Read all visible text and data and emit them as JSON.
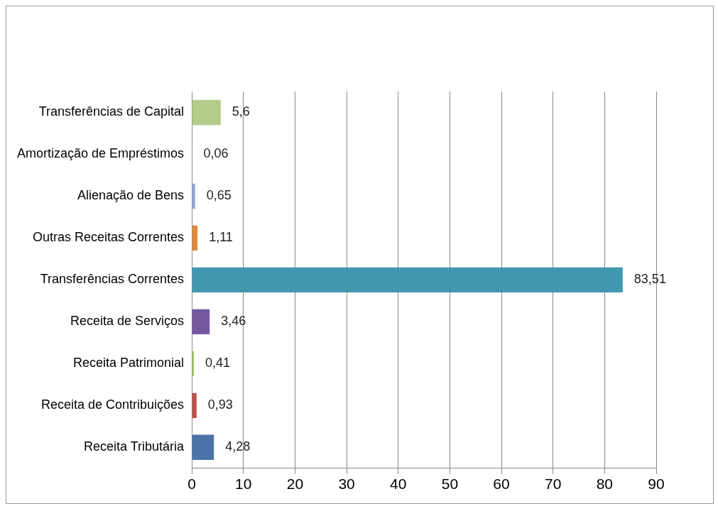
{
  "chart_data": {
    "type": "bar",
    "orientation": "horizontal",
    "categories": [
      "Transferências de Capital",
      "Amortização de Empréstimos",
      "Alienação de Bens",
      "Outras Receitas Correntes",
      "Transferências Correntes",
      "Receita de Serviços",
      "Receita Patrimonial",
      "Receita de Contribuições",
      "Receita Tributária"
    ],
    "values": [
      5.6,
      0.06,
      0.65,
      1.11,
      83.51,
      3.46,
      0.41,
      0.93,
      4.28
    ],
    "colors": [
      "#b3cc8a",
      "#e6e6e6",
      "#9aa9d4",
      "#e0883a",
      "#4198af",
      "#7358a0",
      "#a6c060",
      "#c0504d",
      "#4a74a8"
    ],
    "value_labels": [
      "5,6",
      "0,06",
      "0,65",
      "1,11",
      "83,51",
      "3,46",
      "0,41",
      "0,93",
      "4,28"
    ],
    "xlim": [
      0,
      90
    ],
    "xticks": [
      0,
      10,
      20,
      30,
      40,
      50,
      60,
      70,
      80,
      90
    ],
    "grid": "x",
    "legend": false
  }
}
